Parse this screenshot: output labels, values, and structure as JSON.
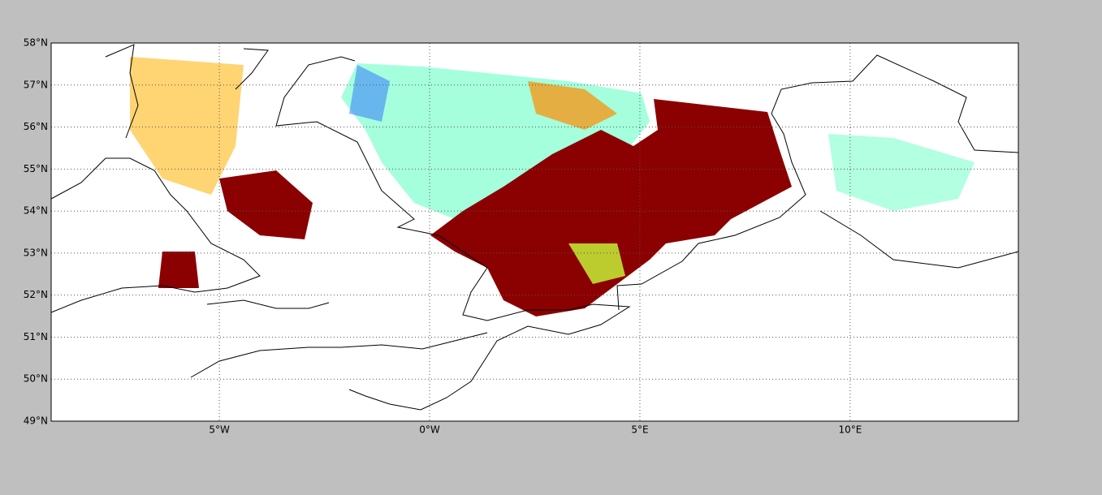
{
  "chart_data": {
    "type": "map",
    "xlim": [
      -9,
      14
    ],
    "ylim": [
      49,
      58
    ],
    "xticks": [
      {
        "value": -5,
        "label": "5°W"
      },
      {
        "value": 0,
        "label": "0°W"
      },
      {
        "value": 5,
        "label": "5°E"
      },
      {
        "value": 10,
        "label": "10°E"
      }
    ],
    "yticks": [
      {
        "value": 49,
        "label": "49°N"
      },
      {
        "value": 50,
        "label": "50°N"
      },
      {
        "value": 51,
        "label": "51°N"
      },
      {
        "value": 52,
        "label": "52°N"
      },
      {
        "value": 53,
        "label": "53°N"
      },
      {
        "value": 54,
        "label": "54°N"
      },
      {
        "value": 55,
        "label": "55°N"
      },
      {
        "value": 56,
        "label": "56°N"
      },
      {
        "value": 57,
        "label": "57°N"
      },
      {
        "value": 58,
        "label": "58°N"
      }
    ],
    "grid": true
  }
}
